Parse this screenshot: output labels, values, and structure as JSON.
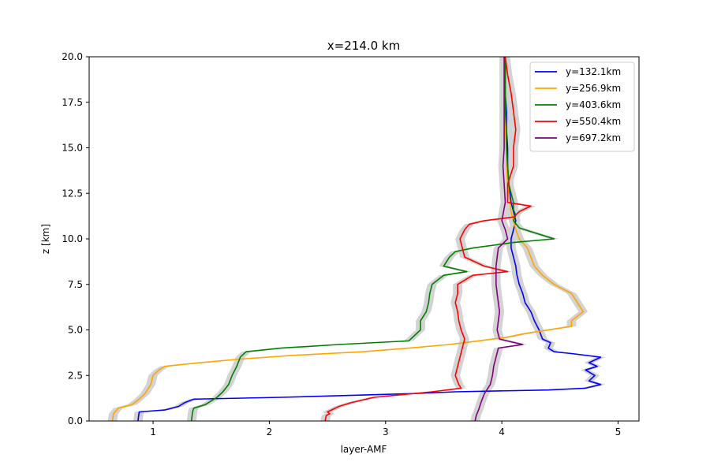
{
  "chart_data": {
    "type": "line",
    "title": "x=214.0 km",
    "xlabel": "layer-AMF",
    "ylabel": "z [km]",
    "xlim": [
      0.45,
      5.18
    ],
    "ylim": [
      0,
      20
    ],
    "xticks": [
      1,
      2,
      3,
      4,
      5
    ],
    "yticks": [
      0.0,
      2.5,
      5.0,
      7.5,
      10.0,
      12.5,
      15.0,
      17.5,
      20.0
    ],
    "ytick_labels": [
      "0.0",
      "2.5",
      "5.0",
      "7.5",
      "10.0",
      "12.5",
      "15.0",
      "17.5",
      "20.0"
    ],
    "grid": false,
    "legend_position": "top-right",
    "uncertainty_band": {
      "color": "#d3d3d3",
      "half_width": 0.04
    },
    "series": [
      {
        "name": "y=132.1km",
        "color": "#0000ff",
        "z": [
          0.0,
          0.5,
          0.6,
          0.8,
          1.0,
          1.2,
          1.3,
          1.5,
          1.6,
          1.7,
          1.8,
          2.0,
          2.2,
          2.5,
          2.8,
          3.0,
          3.2,
          3.5,
          3.7,
          3.8,
          4.0,
          4.3,
          4.5,
          5.0,
          5.5,
          6.0,
          6.5,
          7.0,
          7.5,
          8.0,
          8.5,
          9.0,
          9.5,
          10.0,
          10.5,
          11.0,
          11.5,
          12.0,
          12.5,
          13.0,
          14.0,
          15.0,
          16.0,
          17.0,
          18.0,
          19.0,
          20.0
        ],
        "x": [
          0.87,
          0.88,
          1.1,
          1.22,
          1.27,
          1.35,
          2.1,
          3.2,
          3.6,
          4.4,
          4.72,
          4.85,
          4.75,
          4.8,
          4.72,
          4.82,
          4.75,
          4.85,
          4.6,
          4.45,
          4.4,
          4.42,
          4.35,
          4.32,
          4.28,
          4.25,
          4.2,
          4.18,
          4.15,
          4.13,
          4.12,
          4.1,
          4.08,
          4.08,
          4.1,
          4.12,
          4.1,
          4.08,
          4.07,
          4.06,
          4.05,
          4.05,
          4.04,
          4.04,
          4.03,
          4.03,
          4.03
        ]
      },
      {
        "name": "y=256.9km",
        "color": "#ffa500",
        "z": [
          0.0,
          0.4,
          0.7,
          0.9,
          1.2,
          1.5,
          2.0,
          2.5,
          2.8,
          3.0,
          3.2,
          3.4,
          3.6,
          3.8,
          4.0,
          4.2,
          4.4,
          4.6,
          4.8,
          5.0,
          5.2,
          5.5,
          6.0,
          6.5,
          7.0,
          7.5,
          8.0,
          8.5,
          9.0,
          9.5,
          10.0,
          10.5,
          11.0,
          11.5,
          12.0,
          12.5,
          13.0,
          14.0,
          15.0,
          16.0,
          17.0,
          18.0,
          19.0,
          20.0
        ],
        "x": [
          0.65,
          0.66,
          0.7,
          0.82,
          0.88,
          0.93,
          0.98,
          1.0,
          1.05,
          1.1,
          1.4,
          1.75,
          2.2,
          2.8,
          3.2,
          3.55,
          3.8,
          4.05,
          4.2,
          4.4,
          4.6,
          4.6,
          4.7,
          4.65,
          4.6,
          4.45,
          4.35,
          4.28,
          4.25,
          4.22,
          4.15,
          4.12,
          4.1,
          4.08,
          4.07,
          4.06,
          4.05,
          4.04,
          4.04,
          4.03,
          4.03,
          4.03,
          4.03,
          4.02
        ]
      },
      {
        "name": "y=403.6km",
        "color": "#008000",
        "z": [
          0.0,
          0.5,
          0.7,
          0.9,
          1.1,
          1.3,
          1.6,
          2.0,
          2.5,
          3.0,
          3.5,
          3.8,
          4.0,
          4.2,
          4.4,
          5.0,
          5.5,
          6.0,
          6.5,
          7.0,
          7.5,
          8.0,
          8.2,
          8.5,
          9.0,
          9.3,
          9.5,
          9.8,
          10.0,
          10.3,
          10.6,
          11.0,
          11.3,
          11.6,
          12.0,
          12.5,
          13.0,
          14.0,
          15.0,
          16.0,
          17.0,
          18.0,
          19.0,
          20.0
        ],
        "x": [
          1.33,
          1.34,
          1.35,
          1.45,
          1.5,
          1.55,
          1.6,
          1.65,
          1.68,
          1.72,
          1.75,
          1.8,
          2.1,
          2.6,
          3.2,
          3.3,
          3.3,
          3.35,
          3.37,
          3.38,
          3.4,
          3.5,
          3.7,
          3.5,
          3.55,
          3.6,
          3.75,
          4.1,
          4.45,
          4.3,
          4.15,
          4.1,
          4.12,
          4.1,
          4.1,
          4.08,
          4.06,
          4.05,
          4.04,
          4.04,
          4.03,
          4.03,
          4.03,
          4.03
        ]
      },
      {
        "name": "y=550.4km",
        "color": "#ff0000",
        "z": [
          0.0,
          0.3,
          0.4,
          0.5,
          0.8,
          1.0,
          1.3,
          1.6,
          1.8,
          2.0,
          2.5,
          3.0,
          3.5,
          4.0,
          4.5,
          5.0,
          5.5,
          6.0,
          6.5,
          7.0,
          7.5,
          8.0,
          8.2,
          8.5,
          9.0,
          9.5,
          10.0,
          10.5,
          10.8,
          11.0,
          11.2,
          11.5,
          11.8,
          12.0,
          13.0,
          14.0,
          15.0,
          16.0,
          17.0,
          18.0,
          19.0,
          20.0
        ],
        "x": [
          2.48,
          2.49,
          2.52,
          2.5,
          2.6,
          2.7,
          2.9,
          3.4,
          3.65,
          3.63,
          3.6,
          3.62,
          3.64,
          3.66,
          3.68,
          3.65,
          3.63,
          3.62,
          3.6,
          3.62,
          3.62,
          3.75,
          4.05,
          3.85,
          3.68,
          3.66,
          3.64,
          3.68,
          3.72,
          3.85,
          4.1,
          4.15,
          4.25,
          4.05,
          4.05,
          4.1,
          4.1,
          4.12,
          4.1,
          4.08,
          4.05,
          4.03
        ]
      },
      {
        "name": "y=697.2km",
        "color": "#800080",
        "z": [
          0.0,
          0.3,
          0.6,
          1.0,
          1.5,
          2.0,
          2.5,
          3.0,
          3.5,
          4.0,
          4.2,
          4.5,
          5.0,
          5.5,
          6.0,
          6.5,
          7.0,
          7.5,
          8.0,
          8.5,
          9.0,
          9.5,
          10.0,
          10.5,
          11.0,
          12.0,
          13.0,
          14.0,
          15.0,
          16.0,
          17.0,
          18.0,
          19.0,
          20.0
        ],
        "x": [
          3.77,
          3.78,
          3.8,
          3.82,
          3.85,
          3.9,
          3.92,
          3.93,
          3.95,
          3.97,
          4.18,
          3.98,
          3.96,
          3.97,
          3.98,
          3.97,
          3.96,
          3.95,
          3.95,
          3.95,
          3.96,
          3.97,
          4.05,
          4.03,
          4.0,
          4.03,
          4.02,
          4.01,
          4.02,
          4.02,
          4.02,
          4.02,
          4.02,
          4.02
        ]
      }
    ]
  }
}
